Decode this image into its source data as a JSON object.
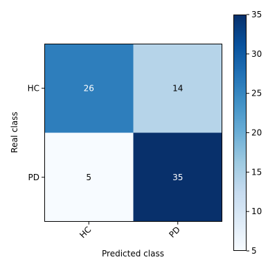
{
  "chart_data": {
    "type": "heatmap",
    "title": "",
    "xlabel": "Predicted class",
    "ylabel": "Real class",
    "x_categories": [
      "HC",
      "PD"
    ],
    "y_categories": [
      "HC",
      "PD"
    ],
    "values": [
      [
        26,
        14
      ],
      [
        5,
        35
      ]
    ],
    "cell_text_colors": [
      [
        "#ffffff",
        "#000000"
      ],
      [
        "#000000",
        "#ffffff"
      ]
    ],
    "colormap": "Blues",
    "color_range": [
      5,
      35
    ],
    "colorbar_ticks": [
      5,
      10,
      15,
      20,
      25,
      30,
      35
    ],
    "colorbar_tick_labels": [
      "5",
      "10",
      "15",
      "20",
      "25",
      "30",
      "35"
    ],
    "x_tick_rotation_deg": 45,
    "grid": false
  }
}
